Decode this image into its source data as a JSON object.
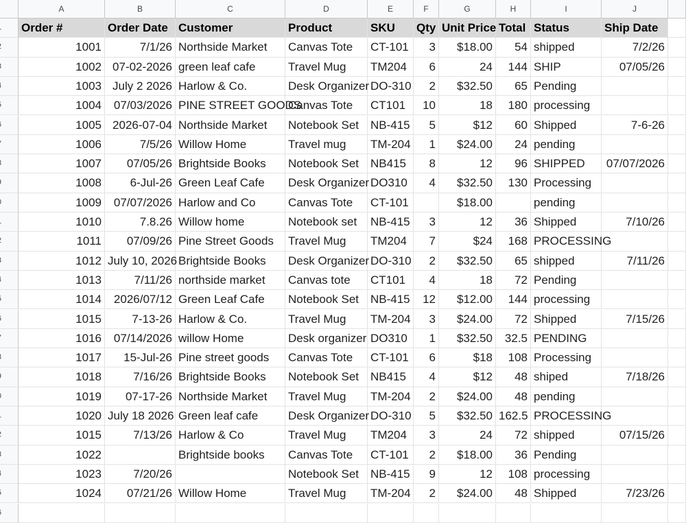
{
  "columns": [
    "A",
    "B",
    "C",
    "D",
    "E",
    "F",
    "G",
    "H",
    "I",
    "J"
  ],
  "header": [
    "Order #",
    "Order Date",
    "Customer",
    "Product",
    "SKU",
    "Qty",
    "Unit Price",
    "Total",
    "Status",
    "Ship Date"
  ],
  "rows": [
    [
      "1001",
      "7/1/26",
      "Northside Market",
      "Canvas Tote",
      "CT-101",
      "3",
      "$18.00",
      "54",
      "shipped",
      "7/2/26"
    ],
    [
      "1002",
      "07-02-2026",
      "green leaf cafe",
      "Travel Mug",
      "TM204",
      "6",
      "24",
      "144",
      "SHIP",
      "07/05/26"
    ],
    [
      "1003",
      "July 2 2026",
      "Harlow & Co.",
      "Desk Organizer",
      "DO-310",
      "2",
      "$32.50",
      "65",
      "Pending",
      ""
    ],
    [
      "1004",
      "07/03/2026",
      "PINE STREET GOODS",
      "Canvas Tote",
      "CT101",
      "10",
      "18",
      "180",
      "processing",
      ""
    ],
    [
      "1005",
      "2026-07-04",
      "Northside Market",
      "Notebook Set",
      "NB-415",
      "5",
      "$12",
      "60",
      "Shipped",
      "7-6-26"
    ],
    [
      "1006",
      "7/5/26",
      "Willow Home",
      "Travel mug",
      "TM-204",
      "1",
      "$24.00",
      "24",
      "pending",
      ""
    ],
    [
      "1007",
      "07/05/26",
      "Brightside Books",
      "Notebook Set",
      "NB415",
      "8",
      "12",
      "96",
      "SHIPPED",
      "07/07/2026"
    ],
    [
      "1008",
      "6-Jul-26",
      "Green Leaf Cafe",
      "Desk Organizer",
      "DO310",
      "4",
      "$32.50",
      "130",
      "Processing",
      ""
    ],
    [
      "1009",
      "07/07/2026",
      "Harlow and Co",
      "Canvas Tote",
      "CT-101",
      "",
      "$18.00",
      "",
      "pending",
      ""
    ],
    [
      "1010",
      "7.8.26",
      "Willow home",
      "Notebook set",
      "NB-415",
      "3",
      "12",
      "36",
      "Shipped",
      "7/10/26"
    ],
    [
      "1011",
      "07/09/26",
      "Pine Street Goods",
      "Travel Mug",
      "TM204",
      "7",
      "$24",
      "168",
      "PROCESSING",
      ""
    ],
    [
      "1012",
      "July 10, 2026",
      "Brightside Books",
      "Desk Organizer",
      "DO-310",
      "2",
      "$32.50",
      "65",
      "shipped",
      "7/11/26"
    ],
    [
      "1013",
      "7/11/26",
      "northside market",
      "Canvas tote",
      "CT101",
      "4",
      "18",
      "72",
      "Pending",
      ""
    ],
    [
      "1014",
      "2026/07/12",
      "Green Leaf Cafe",
      "Notebook Set",
      "NB-415",
      "12",
      "$12.00",
      "144",
      "processing",
      ""
    ],
    [
      "1015",
      "7-13-26",
      "Harlow & Co.",
      "Travel Mug",
      "TM-204",
      "3",
      "$24.00",
      "72",
      "Shipped",
      "7/15/26"
    ],
    [
      "1016",
      "07/14/2026",
      "willow Home",
      "Desk organizer",
      "DO310",
      "1",
      "$32.50",
      "32.5",
      "PENDING",
      ""
    ],
    [
      "1017",
      "15-Jul-26",
      "Pine street goods",
      "Canvas Tote",
      "CT-101",
      "6",
      "$18",
      "108",
      "Processing",
      ""
    ],
    [
      "1018",
      "7/16/26",
      "Brightside Books",
      "Notebook Set",
      "NB415",
      "4",
      "$12",
      "48",
      "shiped",
      "7/18/26"
    ],
    [
      "1019",
      "07-17-26",
      "Northside Market",
      "Travel Mug",
      "TM-204",
      "2",
      "$24.00",
      "48",
      "pending",
      ""
    ],
    [
      "1020",
      "July 18 2026",
      "Green leaf cafe",
      "Desk Organizer",
      "DO-310",
      "5",
      "$32.50",
      "162.5",
      "PROCESSING",
      ""
    ],
    [
      "1015",
      "7/13/26",
      "Harlow & Co",
      "Travel Mug",
      "TM204",
      "3",
      "24",
      "72",
      "shipped",
      "07/15/26"
    ],
    [
      "1022",
      "",
      "Brightside books",
      "Canvas Tote",
      "CT-101",
      "2",
      "$18.00",
      "36",
      "Pending",
      ""
    ],
    [
      "1023",
      "7/20/26",
      "",
      "Notebook Set",
      "NB-415",
      "9",
      "12",
      "108",
      "processing",
      ""
    ],
    [
      "1024",
      "07/21/26",
      "Willow Home",
      "Travel Mug",
      "TM-204",
      "2",
      "$24.00",
      "48",
      "Shipped",
      "7/23/26"
    ]
  ]
}
